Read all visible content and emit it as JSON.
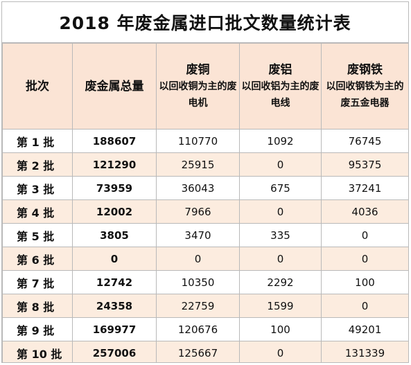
{
  "title": "2018 年废金属进口批文数量统计表",
  "headers": {
    "batch": "批次",
    "total": "废金属总量",
    "copper_main": "废铜",
    "copper_sub": "以回收铜为主的废电机",
    "aluminum_main": "废铝",
    "aluminum_sub": "以回收铝为主的废电线",
    "steel_main": "废钢铁",
    "steel_sub": "以回收钢铁为主的废五金电器"
  },
  "rows": [
    {
      "batch": "第 1 批",
      "total": "188607",
      "copper": "110770",
      "aluminum": "1092",
      "steel": "76745"
    },
    {
      "batch": "第 2 批",
      "total": "121290",
      "copper": "25915",
      "aluminum": "0",
      "steel": "95375"
    },
    {
      "batch": "第 3 批",
      "total": "73959",
      "copper": "36043",
      "aluminum": "675",
      "steel": "37241"
    },
    {
      "batch": "第 4 批",
      "total": "12002",
      "copper": "7966",
      "aluminum": "0",
      "steel": "4036"
    },
    {
      "batch": "第 5 批",
      "total": "3805",
      "copper": "3470",
      "aluminum": "335",
      "steel": "0"
    },
    {
      "batch": "第 6 批",
      "total": "0",
      "copper": "0",
      "aluminum": "0",
      "steel": "0"
    },
    {
      "batch": "第 7 批",
      "total": "12742",
      "copper": "10350",
      "aluminum": "2292",
      "steel": "100"
    },
    {
      "batch": "第 8 批",
      "total": "24358",
      "copper": "22759",
      "aluminum": "1599",
      "steel": "0"
    },
    {
      "batch": "第 9 批",
      "total": "169977",
      "copper": "120676",
      "aluminum": "100",
      "steel": "49201"
    },
    {
      "batch": "第 10 批",
      "total": "257006",
      "copper": "125667",
      "aluminum": "0",
      "steel": "131339"
    }
  ]
}
